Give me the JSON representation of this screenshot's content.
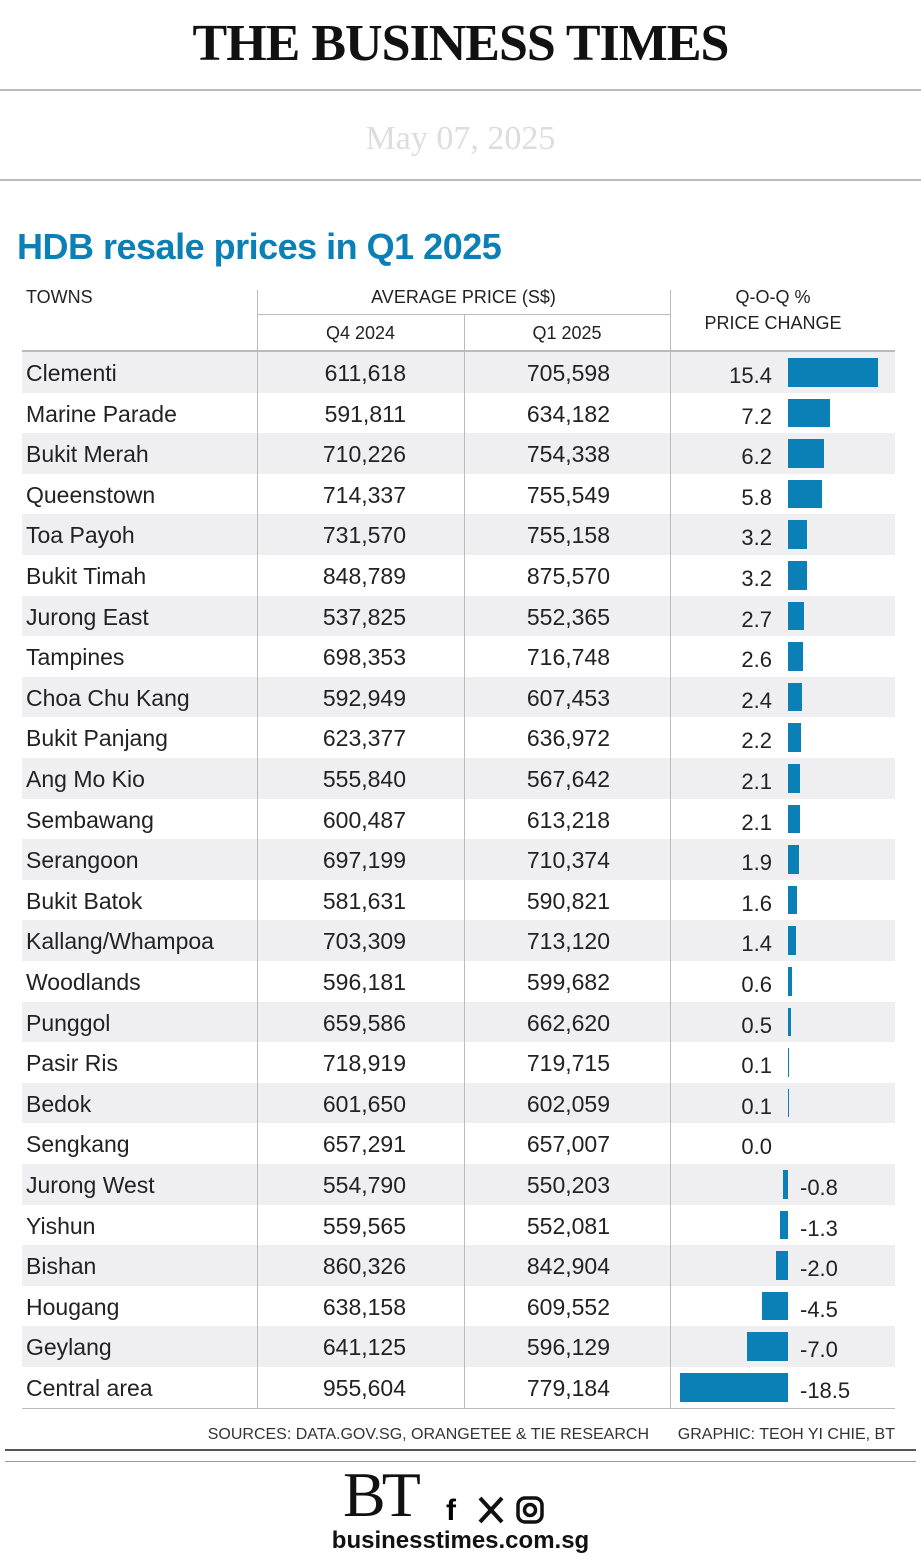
{
  "header": {
    "masthead": "THE BUSINESS TIMES",
    "date": "May 07, 2025"
  },
  "table": {
    "title": "HDB resale prices in Q1 2025",
    "headers": {
      "towns": "TOWNS",
      "average_price": "AVERAGE PRICE (S$)",
      "q4": "Q4 2024",
      "q1": "Q1 2025",
      "change_1": "Q-O-Q %",
      "change_2": "PRICE CHANGE"
    },
    "towns": [
      "Clementi",
      "Marine Parade",
      "Bukit Merah",
      "Queenstown",
      "Toa Payoh",
      "Bukit Timah",
      "Jurong East",
      "Tampines",
      "Choa Chu Kang",
      "Bukit Panjang",
      "Ang Mo Kio",
      "Sembawang",
      "Serangoon",
      "Bukit Batok",
      "Kallang/Whampoa",
      "Woodlands",
      "Punggol",
      "Pasir Ris",
      "Bedok",
      "Sengkang",
      "Jurong West",
      "Yishun",
      "Bishan",
      "Hougang",
      "Geylang",
      "Central area"
    ],
    "q4_2024": [
      "611,618",
      "591,811",
      "710,226",
      "714,337",
      "731,570",
      "848,789",
      "537,825",
      "698,353",
      "592,949",
      "623,377",
      "555,840",
      "600,487",
      "697,199",
      "581,631",
      "703,309",
      "596,181",
      "659,586",
      "718,919",
      "601,650",
      "657,291",
      "554,790",
      "559,565",
      "860,326",
      "638,158",
      "641,125",
      "955,604"
    ],
    "q1_2025": [
      "705,598",
      "634,182",
      "754,338",
      "755,549",
      "755,158",
      "875,570",
      "552,365",
      "716,748",
      "607,453",
      "636,972",
      "567,642",
      "613,218",
      "710,374",
      "590,821",
      "713,120",
      "599,682",
      "662,620",
      "719,715",
      "602,059",
      "657,007",
      "550,203",
      "552,081",
      "842,904",
      "609,552",
      "596,129",
      "779,184"
    ],
    "qoq_change": [
      15.4,
      7.2,
      6.2,
      5.8,
      3.2,
      3.2,
      2.7,
      2.6,
      2.4,
      2.2,
      2.1,
      2.1,
      1.9,
      1.6,
      1.4,
      0.6,
      0.5,
      0.1,
      0.1,
      0.0,
      -0.8,
      -1.3,
      -2.0,
      -4.5,
      -7.0,
      -18.5
    ],
    "value_labels": [
      "15.4",
      "7.2",
      "6.2",
      "5.8",
      "3.2",
      "3.2",
      "2.7",
      "2.6",
      "2.4",
      "2.2",
      "2.1",
      "2.1",
      "1.9",
      "1.6",
      "1.4",
      "0.6",
      "0.5",
      "0.1",
      "0.1",
      "0.0",
      "-0.8",
      "-1.3",
      "-2.0",
      "-4.5",
      "-7.0",
      "-18.5"
    ],
    "bar_color": "#0a80b6",
    "sources": "SOURCES: DATA.GOV.SG, ORANGETEE & TIE RESEARCH",
    "graphic": "GRAPHIC: TEOH YI CHIE, BT"
  },
  "footer": {
    "logo": "BT",
    "url": "businesstimes.com.sg"
  }
}
